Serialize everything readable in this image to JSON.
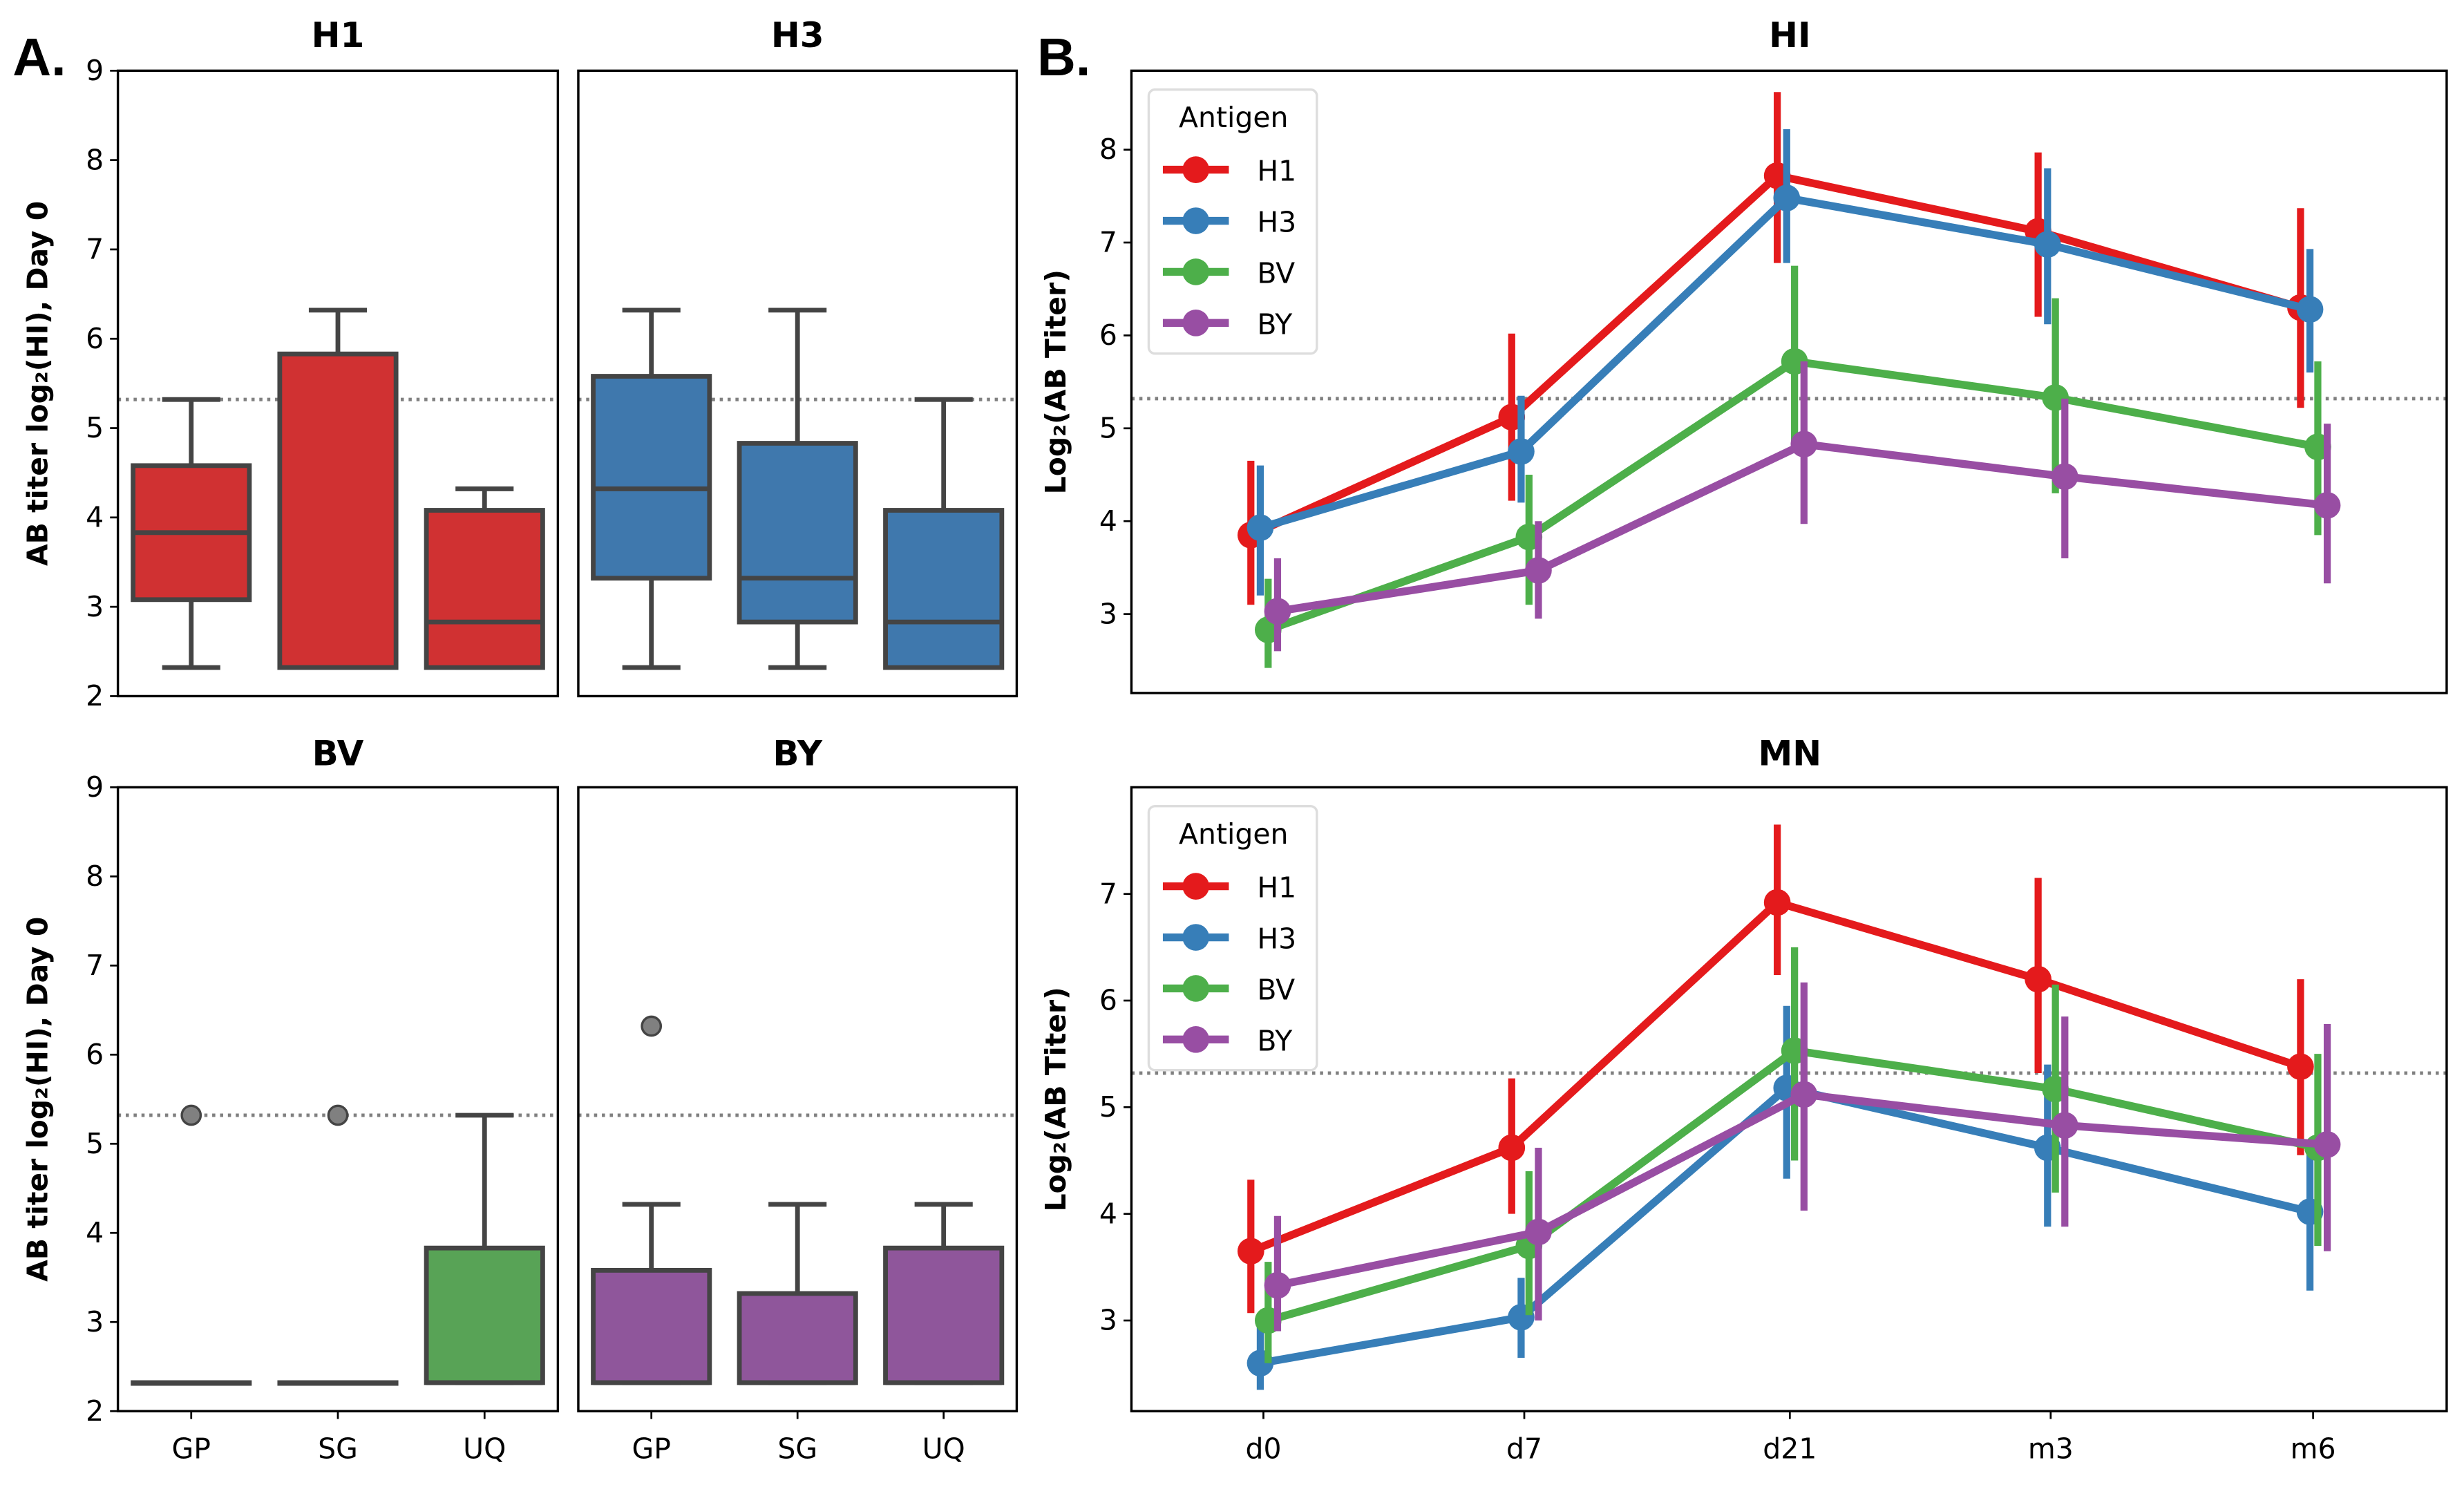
{
  "panel_labels": {
    "a": "A.",
    "b": "B."
  },
  "colors": {
    "H1": "#e41a1c",
    "H3": "#377eb8",
    "BV": "#4daf4a",
    "BY": "#984ea3",
    "box_H1": "#d03132",
    "box_H3": "#3f78ad",
    "box_BV": "#58a356",
    "box_BY": "#8f569b"
  },
  "chart_data": [
    {
      "type": "box",
      "panel": "A",
      "title": "H1",
      "ylabel": "AB titer log₂(HI), Day 0",
      "categories": [
        "GP",
        "SG",
        "UQ"
      ],
      "ylim": [
        2,
        9
      ],
      "yticks": [
        2,
        3,
        4,
        5,
        6,
        7,
        8,
        9
      ],
      "reference_line": 5.32,
      "boxes": [
        {
          "category": "GP",
          "whislo": 2.32,
          "q1": 3.08,
          "med": 3.83,
          "q3": 4.58,
          "whishi": 5.32,
          "fliers": []
        },
        {
          "category": "SG",
          "whislo": 2.32,
          "q1": 2.32,
          "med": 2.32,
          "q3": 5.83,
          "whishi": 6.32,
          "fliers": []
        },
        {
          "category": "UQ",
          "whislo": 2.32,
          "q1": 2.32,
          "med": 2.83,
          "q3": 4.08,
          "whishi": 4.32,
          "fliers": []
        }
      ]
    },
    {
      "type": "box",
      "panel": "A",
      "title": "H3",
      "categories": [
        "GP",
        "SG",
        "UQ"
      ],
      "ylim": [
        2,
        9
      ],
      "reference_line": 5.32,
      "boxes": [
        {
          "category": "GP",
          "whislo": 2.32,
          "q1": 3.32,
          "med": 4.32,
          "q3": 5.58,
          "whishi": 6.32,
          "fliers": []
        },
        {
          "category": "SG",
          "whislo": 2.32,
          "q1": 2.83,
          "med": 3.32,
          "q3": 4.83,
          "whishi": 6.32,
          "fliers": []
        },
        {
          "category": "UQ",
          "whislo": 2.32,
          "q1": 2.32,
          "med": 2.83,
          "q3": 4.08,
          "whishi": 5.32,
          "fliers": []
        }
      ]
    },
    {
      "type": "box",
      "panel": "A",
      "title": "BV",
      "ylabel": "AB titer log₂(HI), Day 0",
      "categories": [
        "GP",
        "SG",
        "UQ"
      ],
      "ylim": [
        2,
        9
      ],
      "yticks": [
        2,
        3,
        4,
        5,
        6,
        7,
        8,
        9
      ],
      "reference_line": 5.32,
      "boxes": [
        {
          "category": "GP",
          "whislo": 2.32,
          "q1": 2.32,
          "med": 2.32,
          "q3": 2.32,
          "whishi": 2.32,
          "fliers": [
            5.32
          ]
        },
        {
          "category": "SG",
          "whislo": 2.32,
          "q1": 2.32,
          "med": 2.32,
          "q3": 2.32,
          "whishi": 2.32,
          "fliers": [
            5.32
          ]
        },
        {
          "category": "UQ",
          "whislo": 2.32,
          "q1": 2.32,
          "med": 2.32,
          "q3": 3.83,
          "whishi": 5.32,
          "fliers": []
        }
      ]
    },
    {
      "type": "box",
      "panel": "A",
      "title": "BY",
      "categories": [
        "GP",
        "SG",
        "UQ"
      ],
      "ylim": [
        2,
        9
      ],
      "reference_line": 5.32,
      "boxes": [
        {
          "category": "GP",
          "whislo": 2.32,
          "q1": 2.32,
          "med": 2.32,
          "q3": 3.58,
          "whishi": 4.32,
          "fliers": [
            6.32
          ]
        },
        {
          "category": "SG",
          "whislo": 2.32,
          "q1": 2.32,
          "med": 2.32,
          "q3": 3.32,
          "whishi": 4.32,
          "fliers": []
        },
        {
          "category": "UQ",
          "whislo": 2.32,
          "q1": 2.32,
          "med": 2.32,
          "q3": 3.83,
          "whishi": 4.32,
          "fliers": []
        }
      ]
    },
    {
      "type": "line",
      "panel": "B",
      "title": "HI",
      "ylabel": "Log₂(AB Titer)",
      "categories": [
        "d0",
        "d7",
        "d21",
        "m3",
        "m6"
      ],
      "ylim": [
        2.15,
        8.85
      ],
      "yticks": [
        3,
        4,
        5,
        6,
        7,
        8
      ],
      "reference_line": 5.32,
      "legend": {
        "title": "Antigen",
        "placement": "upper-left"
      },
      "series": [
        {
          "name": "H1",
          "values": [
            3.85,
            5.12,
            7.72,
            7.12,
            6.3
          ],
          "ci_low": [
            3.1,
            4.22,
            6.78,
            6.2,
            5.22
          ],
          "ci_high": [
            4.65,
            6.02,
            8.62,
            7.97,
            7.37
          ]
        },
        {
          "name": "H3",
          "values": [
            3.93,
            4.75,
            7.48,
            6.98,
            6.28
          ],
          "ci_low": [
            3.2,
            4.2,
            6.78,
            6.12,
            5.6
          ],
          "ci_high": [
            4.6,
            5.35,
            8.22,
            7.8,
            6.93
          ]
        },
        {
          "name": "BV",
          "values": [
            2.83,
            3.83,
            5.72,
            5.33,
            4.8
          ],
          "ci_low": [
            2.42,
            3.1,
            4.8,
            4.3,
            3.85
          ],
          "ci_high": [
            3.38,
            4.5,
            6.75,
            6.4,
            5.72
          ]
        },
        {
          "name": "BY",
          "values": [
            3.03,
            3.47,
            4.83,
            4.48,
            4.17
          ],
          "ci_low": [
            2.6,
            2.95,
            3.97,
            3.6,
            3.33
          ],
          "ci_high": [
            3.6,
            4.0,
            5.72,
            5.32,
            5.05
          ]
        }
      ]
    },
    {
      "type": "line",
      "panel": "B",
      "title": "MN",
      "ylabel": "Log₂(AB Titer)",
      "categories": [
        "d0",
        "d7",
        "d21",
        "m3",
        "m6"
      ],
      "ylim": [
        2.15,
        8.0
      ],
      "yticks": [
        3,
        4,
        5,
        6,
        7
      ],
      "reference_line": 5.32,
      "legend": {
        "title": "Antigen",
        "placement": "upper-left"
      },
      "series": [
        {
          "name": "H1",
          "values": [
            3.65,
            4.62,
            6.92,
            6.2,
            5.38
          ],
          "ci_low": [
            3.07,
            4.0,
            6.24,
            5.32,
            4.55
          ],
          "ci_high": [
            4.32,
            5.27,
            7.65,
            7.15,
            6.2
          ]
        },
        {
          "name": "H3",
          "values": [
            2.6,
            3.03,
            5.18,
            4.62,
            4.02
          ],
          "ci_low": [
            2.35,
            2.65,
            4.33,
            3.88,
            3.28
          ],
          "ci_high": [
            3.0,
            3.4,
            5.95,
            5.4,
            4.65
          ]
        },
        {
          "name": "BV",
          "values": [
            3.0,
            3.7,
            5.53,
            5.17,
            4.62
          ],
          "ci_low": [
            2.6,
            3.05,
            4.5,
            4.2,
            3.7
          ],
          "ci_high": [
            3.55,
            4.4,
            6.5,
            6.15,
            5.5
          ]
        },
        {
          "name": "BY",
          "values": [
            3.33,
            3.83,
            5.12,
            4.83,
            4.65
          ],
          "ci_low": [
            2.9,
            3.0,
            4.03,
            3.88,
            3.65
          ],
          "ci_high": [
            3.98,
            4.62,
            6.17,
            5.85,
            5.78
          ]
        }
      ]
    }
  ]
}
